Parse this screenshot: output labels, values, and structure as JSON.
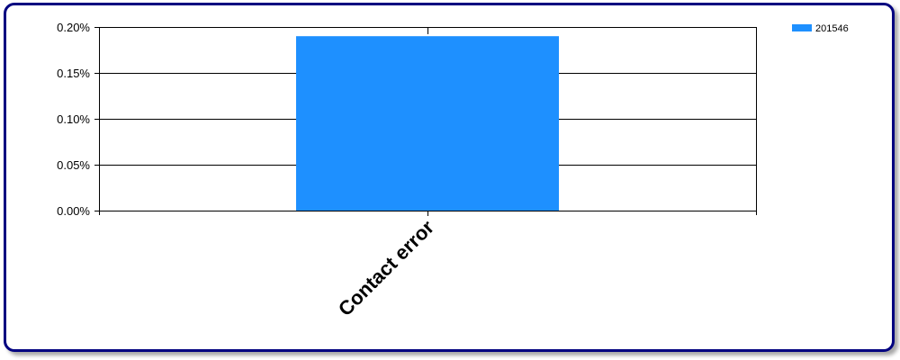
{
  "chart_data": {
    "type": "bar",
    "categories": [
      "Contact error"
    ],
    "series": [
      {
        "name": "201546",
        "values": [
          0.19
        ],
        "color": "#1E90FF"
      }
    ],
    "ylim": [
      0,
      0.2
    ],
    "y_ticks": [
      0.0,
      0.05,
      0.1,
      0.15,
      0.2
    ],
    "y_tick_labels": [
      "0.00%",
      "0.05%",
      "0.10%",
      "0.15%",
      "0.20%"
    ],
    "grid": true,
    "legend_position": "top-right",
    "title": "",
    "xlabel": "",
    "ylabel": ""
  }
}
